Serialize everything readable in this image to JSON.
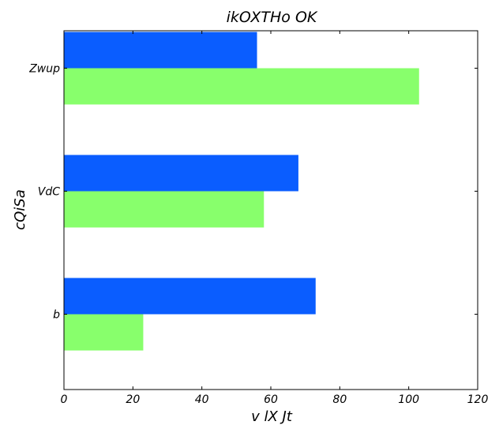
{
  "chart_data": {
    "type": "bar",
    "orientation": "horizontal",
    "title": "ikOXTHo OK",
    "xlabel": "v lX  Jt",
    "ylabel": "cQiSa",
    "categories": [
      "b",
      "VdC",
      "Zwup"
    ],
    "series": [
      {
        "values": [
          73,
          68,
          56
        ],
        "color": "#0a5dff"
      },
      {
        "values": [
          23,
          58,
          103
        ],
        "color": "#88ff6c"
      }
    ],
    "xlim": [
      0,
      120
    ],
    "xticks": [
      "0",
      "20",
      "40",
      "60",
      "80",
      "100",
      "120"
    ],
    "grid": false,
    "legend": "none"
  }
}
